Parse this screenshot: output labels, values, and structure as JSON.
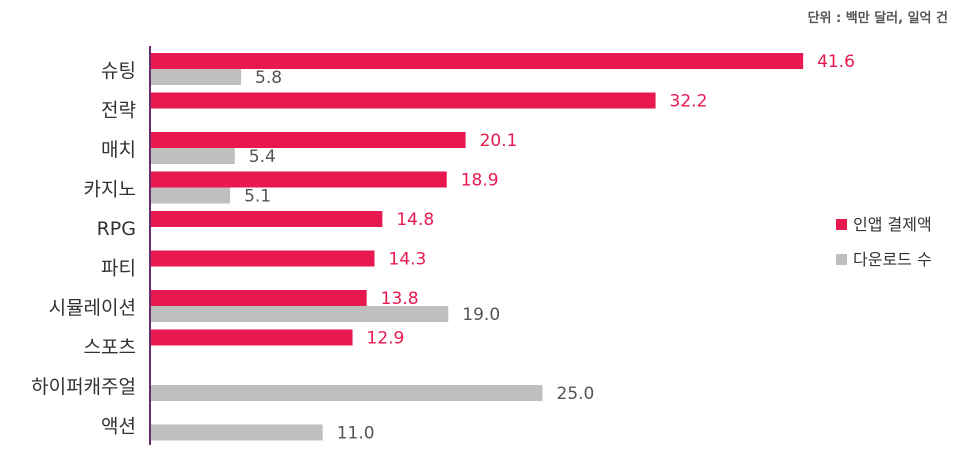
{
  "unit_note": "단위 : 백만 달러, 일억 건",
  "colors": {
    "revenue": "#e8194f",
    "downloads": "#bfbfbf",
    "axis": "#6b2c6e",
    "revenue_label": "#e8194f",
    "downloads_label": "#555555"
  },
  "chart_data": {
    "type": "bar",
    "orientation": "horizontal",
    "categories": [
      "슈팅",
      "전략",
      "매치",
      "카지노",
      "RPG",
      "파티",
      "시뮬레이션",
      "스포츠",
      "하이퍼캐주얼",
      "액션"
    ],
    "series": [
      {
        "name": "인앱 결제액",
        "values": [
          41.6,
          32.2,
          20.1,
          18.9,
          14.8,
          14.3,
          13.8,
          12.9,
          null,
          null
        ]
      },
      {
        "name": "다운로드 수",
        "values": [
          5.8,
          null,
          5.4,
          5.1,
          null,
          null,
          19.0,
          null,
          25.0,
          11.0
        ]
      }
    ],
    "title": "",
    "xlabel": "",
    "ylabel": "",
    "xlim": [
      0,
      46
    ],
    "grid": false,
    "legend": "right"
  }
}
